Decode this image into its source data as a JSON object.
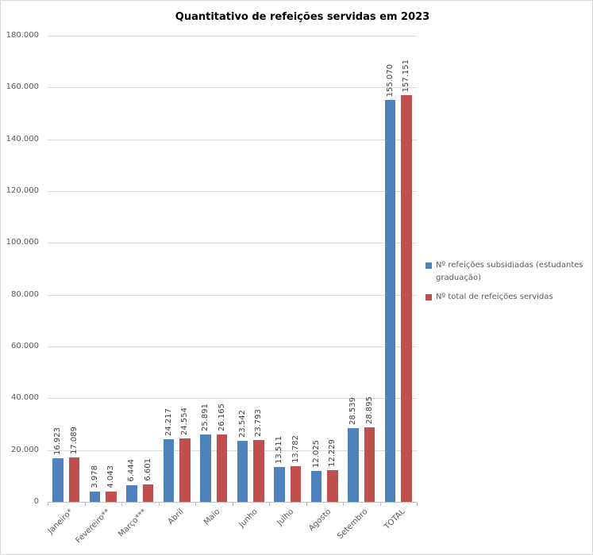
{
  "chart_data": {
    "type": "bar",
    "title": "Quantitativo de refeições servidas em 2023",
    "categories": [
      "Janeiro*",
      "Fevereiro**",
      "Março***",
      "Abril",
      "Maio",
      "Junho",
      "Julho",
      "Agosto",
      "Setembro",
      "TOTAL"
    ],
    "series": [
      {
        "name": "Nº refeições subsidiadas (estudantes graduação)",
        "color_key": "series_blue",
        "values": [
          16923,
          3978,
          6444,
          24217,
          25891,
          23542,
          13511,
          12025,
          28539,
          155070
        ],
        "value_labels": [
          "16.923",
          "3.978",
          "6.444",
          "24.217",
          "25.891",
          "23.542",
          "13.511",
          "12.025",
          "28.539",
          "155.070"
        ]
      },
      {
        "name": "Nº total de refeições servidas",
        "color_key": "series_red",
        "values": [
          17089,
          4043,
          6601,
          24554,
          26165,
          23793,
          13782,
          12229,
          28895,
          157151
        ],
        "value_labels": [
          "17.089",
          "4.043",
          "6.601",
          "24.554",
          "26.165",
          "23.793",
          "13.782",
          "12.229",
          "28.895",
          "157.151"
        ]
      }
    ],
    "ylim": [
      0,
      180000
    ],
    "ytick_step": 20000,
    "y_tick_labels": [
      "0",
      "20.000",
      "40.000",
      "60.000",
      "80.000",
      "100.000",
      "120.000",
      "140.000",
      "160.000",
      "180.000"
    ],
    "grid": true,
    "legend_position": "right",
    "xlabel": "",
    "ylabel": ""
  },
  "colors": {
    "series_blue": "#4F81BD",
    "series_red": "#C0504D",
    "gridline": "#D9D9D9",
    "axis_line": "#BFBFBF",
    "axis_text": "#595959",
    "value_label_text": "#404040",
    "title_text": "#000000",
    "chart_border": "#D7D7D7",
    "background": "#FFFFFF"
  }
}
